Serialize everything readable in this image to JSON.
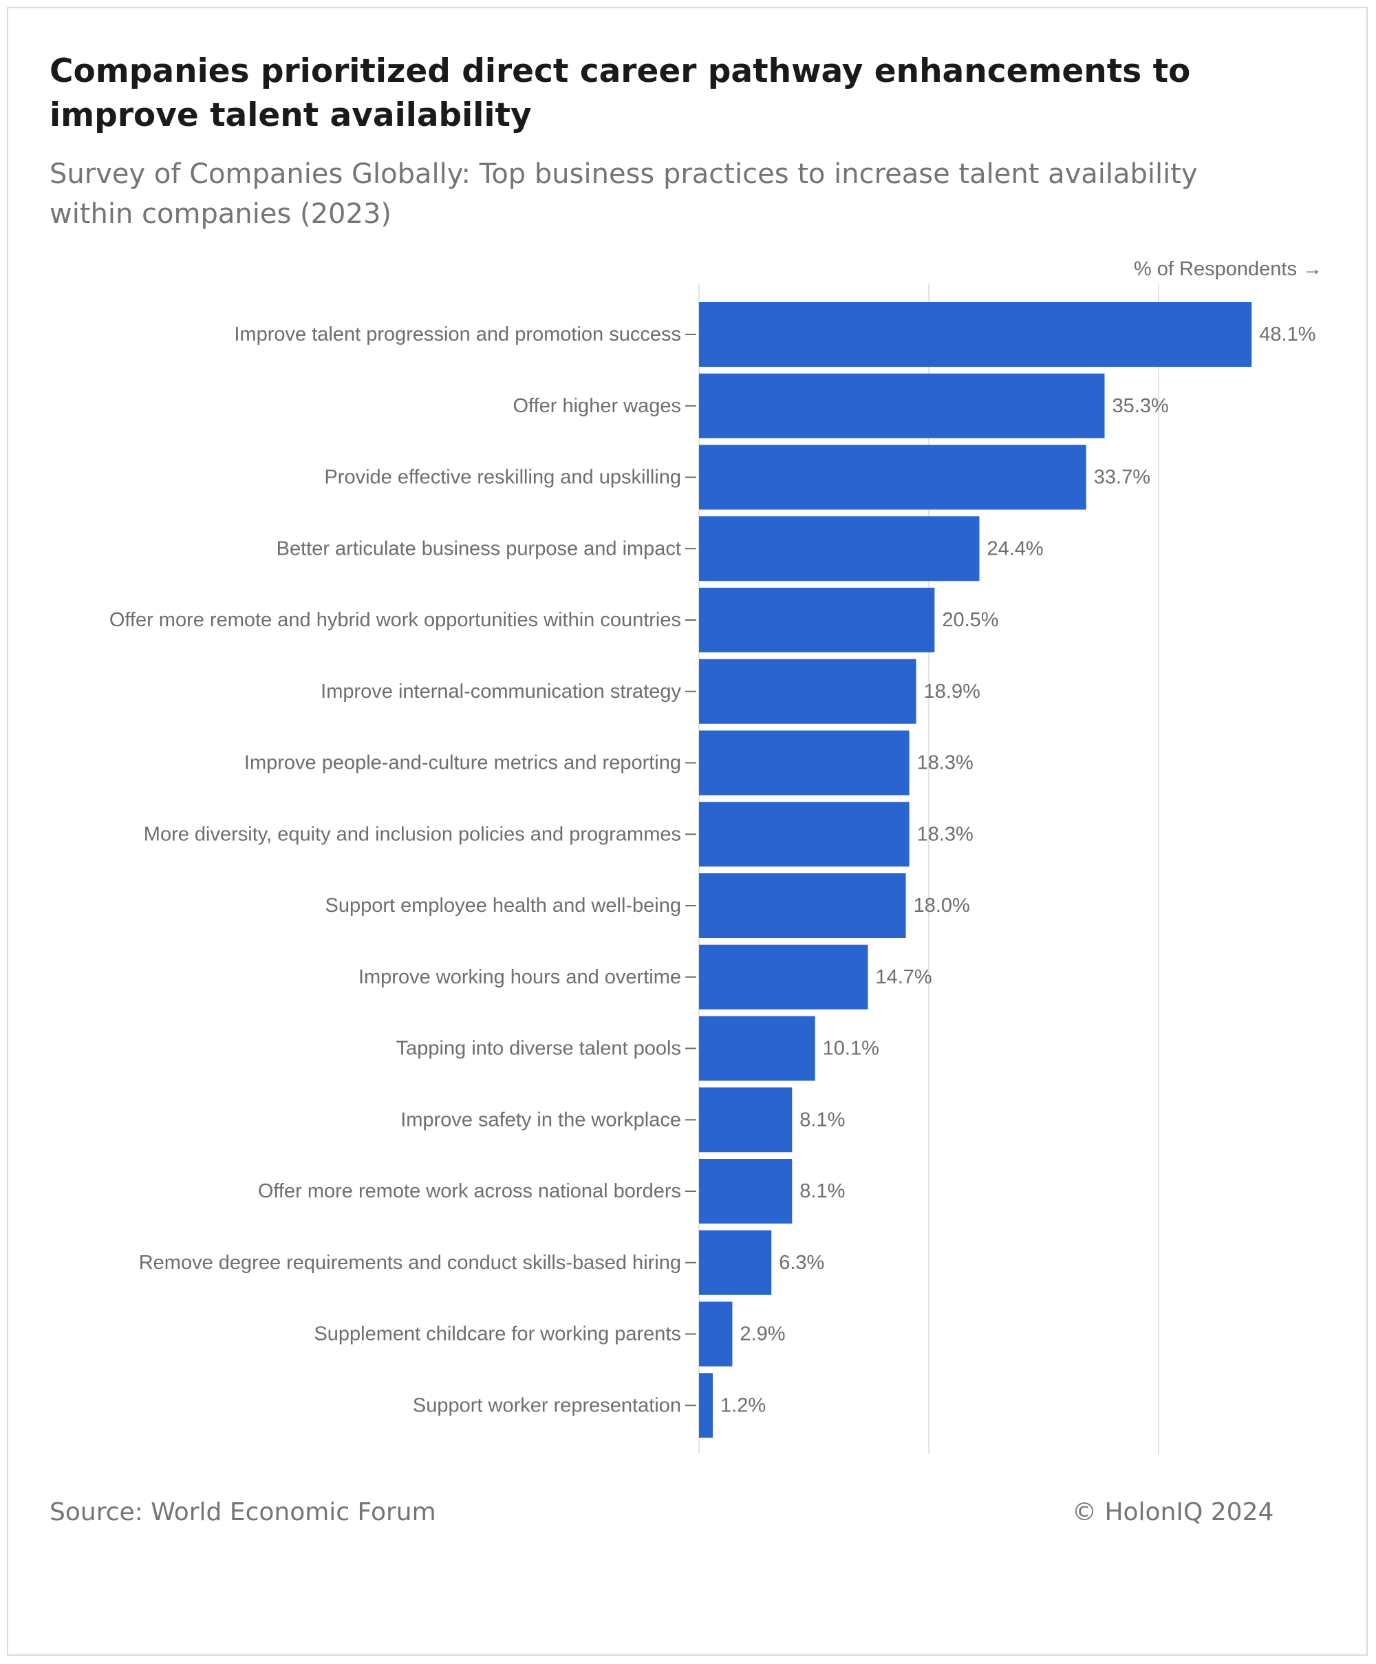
{
  "header": {
    "title": "Companies prioritized direct career pathway enhancements to improve talent availability",
    "subtitle": "Survey of Companies Globally: Top business practices to increase talent availability within companies (2023)"
  },
  "footer": {
    "source": "Source: World Economic Forum",
    "copyright": "© HolonIQ 2024"
  },
  "colors": {
    "bar": "#2a65cf",
    "gridline": "#e3e3e3",
    "label_text": "#6e6e6e"
  },
  "chart_data": {
    "type": "bar",
    "orientation": "horizontal",
    "xlabel": "% of Respondents →",
    "ylabel": "",
    "xlim": [
      0,
      50
    ],
    "grid": true,
    "categories": [
      "Improve talent progression and promotion success",
      "Offer higher wages",
      "Provide effective reskilling and upskilling",
      "Better articulate business purpose and impact",
      "Offer more remote and hybrid work opportunities within countries",
      "Improve internal-communication strategy",
      "Improve people-and-culture metrics and reporting",
      "More diversity, equity and inclusion policies and programmes",
      "Support employee health and well-being",
      "Improve working hours and overtime",
      "Tapping into diverse talent pools",
      "Improve safety in the workplace",
      "Offer more remote work across national borders",
      "Remove degree requirements and conduct skills-based hiring",
      "Supplement childcare for working parents",
      "Support worker representation"
    ],
    "values": [
      48.1,
      35.3,
      33.7,
      24.4,
      20.5,
      18.9,
      18.3,
      18.3,
      18.0,
      14.7,
      10.1,
      8.1,
      8.1,
      6.3,
      2.9,
      1.2
    ],
    "value_labels": [
      "48.1%",
      "35.3%",
      "33.7%",
      "24.4%",
      "20.5%",
      "18.9%",
      "18.3%",
      "18.3%",
      "18.0%",
      "14.7%",
      "10.1%",
      "8.1%",
      "8.1%",
      "6.3%",
      "2.9%",
      "1.2%"
    ],
    "gridlines_at": [
      0,
      20,
      40
    ]
  }
}
